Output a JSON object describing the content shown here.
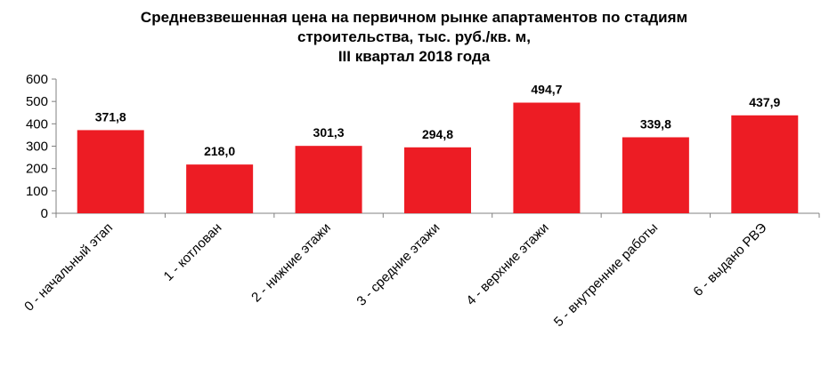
{
  "chart_data": {
    "type": "bar",
    "title_lines": [
      "Средневзвешенная цена на первичном рынке апартаментов по стадиям",
      "строительства, тыс. руб./кв. м,",
      "III квартал 2018 года"
    ],
    "categories": [
      "0 - начальный этап",
      "1 - котлован",
      "2 - нижние этажи",
      "3 - средние этажи",
      "4 - верхние этажи",
      "5 - внутренние работы",
      "6 - выдано РВЭ"
    ],
    "values": [
      371.8,
      218.0,
      301.3,
      294.8,
      494.7,
      339.8,
      437.9
    ],
    "value_labels": [
      "371,8",
      "218,0",
      "301,3",
      "294,8",
      "494,7",
      "339,8",
      "437,9"
    ],
    "ylim": [
      0,
      600
    ],
    "yticks": [
      0,
      100,
      200,
      300,
      400,
      500,
      600
    ],
    "grid": false,
    "legend": "none",
    "bar_color": "#ed1c24",
    "axis_color": "#808080"
  }
}
